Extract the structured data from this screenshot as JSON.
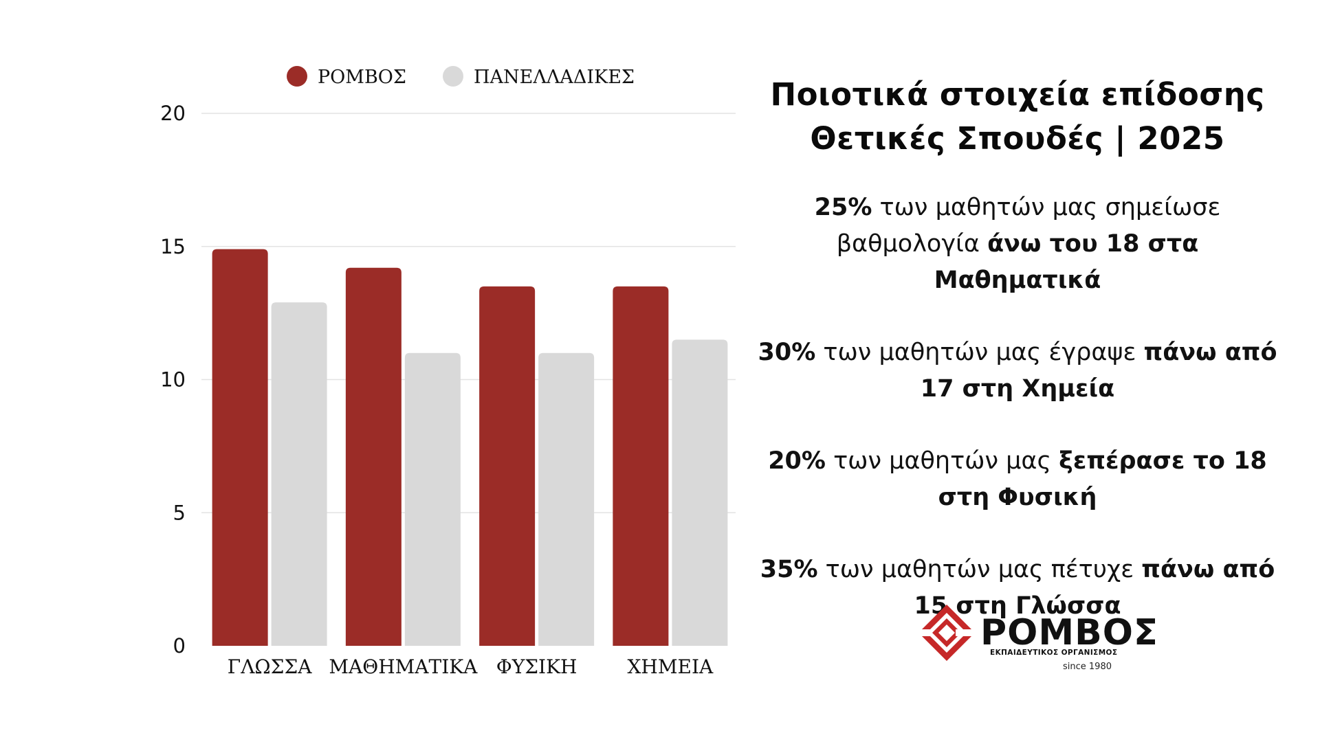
{
  "chart_data": {
    "type": "bar",
    "categories": [
      "ΓΛΩΣΣΑ",
      "ΜΑΘΗΜΑΤΙΚΑ",
      "ΦΥΣΙΚΗ",
      "ΧΗΜΕΙΑ"
    ],
    "series": [
      {
        "name": "ΡΟΜΒΟΣ",
        "color": "#9b2c27",
        "values": [
          14.9,
          14.2,
          13.5,
          13.5
        ]
      },
      {
        "name": "ΠΑΝΕΛΛΑΔΙΚΕΣ",
        "color": "#d9d9d9",
        "values": [
          12.9,
          11.0,
          11.0,
          11.5
        ]
      }
    ],
    "ylim": [
      0,
      20
    ],
    "yticks": [
      0,
      5,
      10,
      15,
      20
    ],
    "grid": true,
    "legend_position": "top"
  },
  "panel": {
    "title_line1": "Ποιοτικά στοιχεία επίδοσης",
    "title_line2": "Θετικές Σπουδές | 2025",
    "stats": [
      {
        "parts": [
          {
            "text": "25%",
            "bold": true
          },
          {
            "text": " των μαθητών μας σημείωσε βαθμολογία ",
            "bold": false
          },
          {
            "text": "άνω του 18 στα Μαθηματικά",
            "bold": true
          }
        ]
      },
      {
        "parts": [
          {
            "text": "30%",
            "bold": true
          },
          {
            "text": " των μαθητών μας έγραψε ",
            "bold": false
          },
          {
            "text": "πάνω από 17 στη Χημεία",
            "bold": true
          }
        ]
      },
      {
        "parts": [
          {
            "text": "20%",
            "bold": true
          },
          {
            "text": " των μαθητών μας ",
            "bold": false
          },
          {
            "text": "ξεπέρασε το 18 στη Φυσική",
            "bold": true
          }
        ]
      },
      {
        "parts": [
          {
            "text": "35%",
            "bold": true
          },
          {
            "text": " των μαθητών μας πέτυχε ",
            "bold": false
          },
          {
            "text": "πάνω από 15 στη Γλώσσα",
            "bold": true
          }
        ]
      }
    ]
  },
  "logo": {
    "name": "ΡΟΜΒΟΣ",
    "subtitle": "ΕΚΠΑΙΔΕΥΤΙΚΟΣ ΟΡΓΑΝΙΣΜΟΣ",
    "since": "since 1980",
    "accent": "#c62828"
  }
}
